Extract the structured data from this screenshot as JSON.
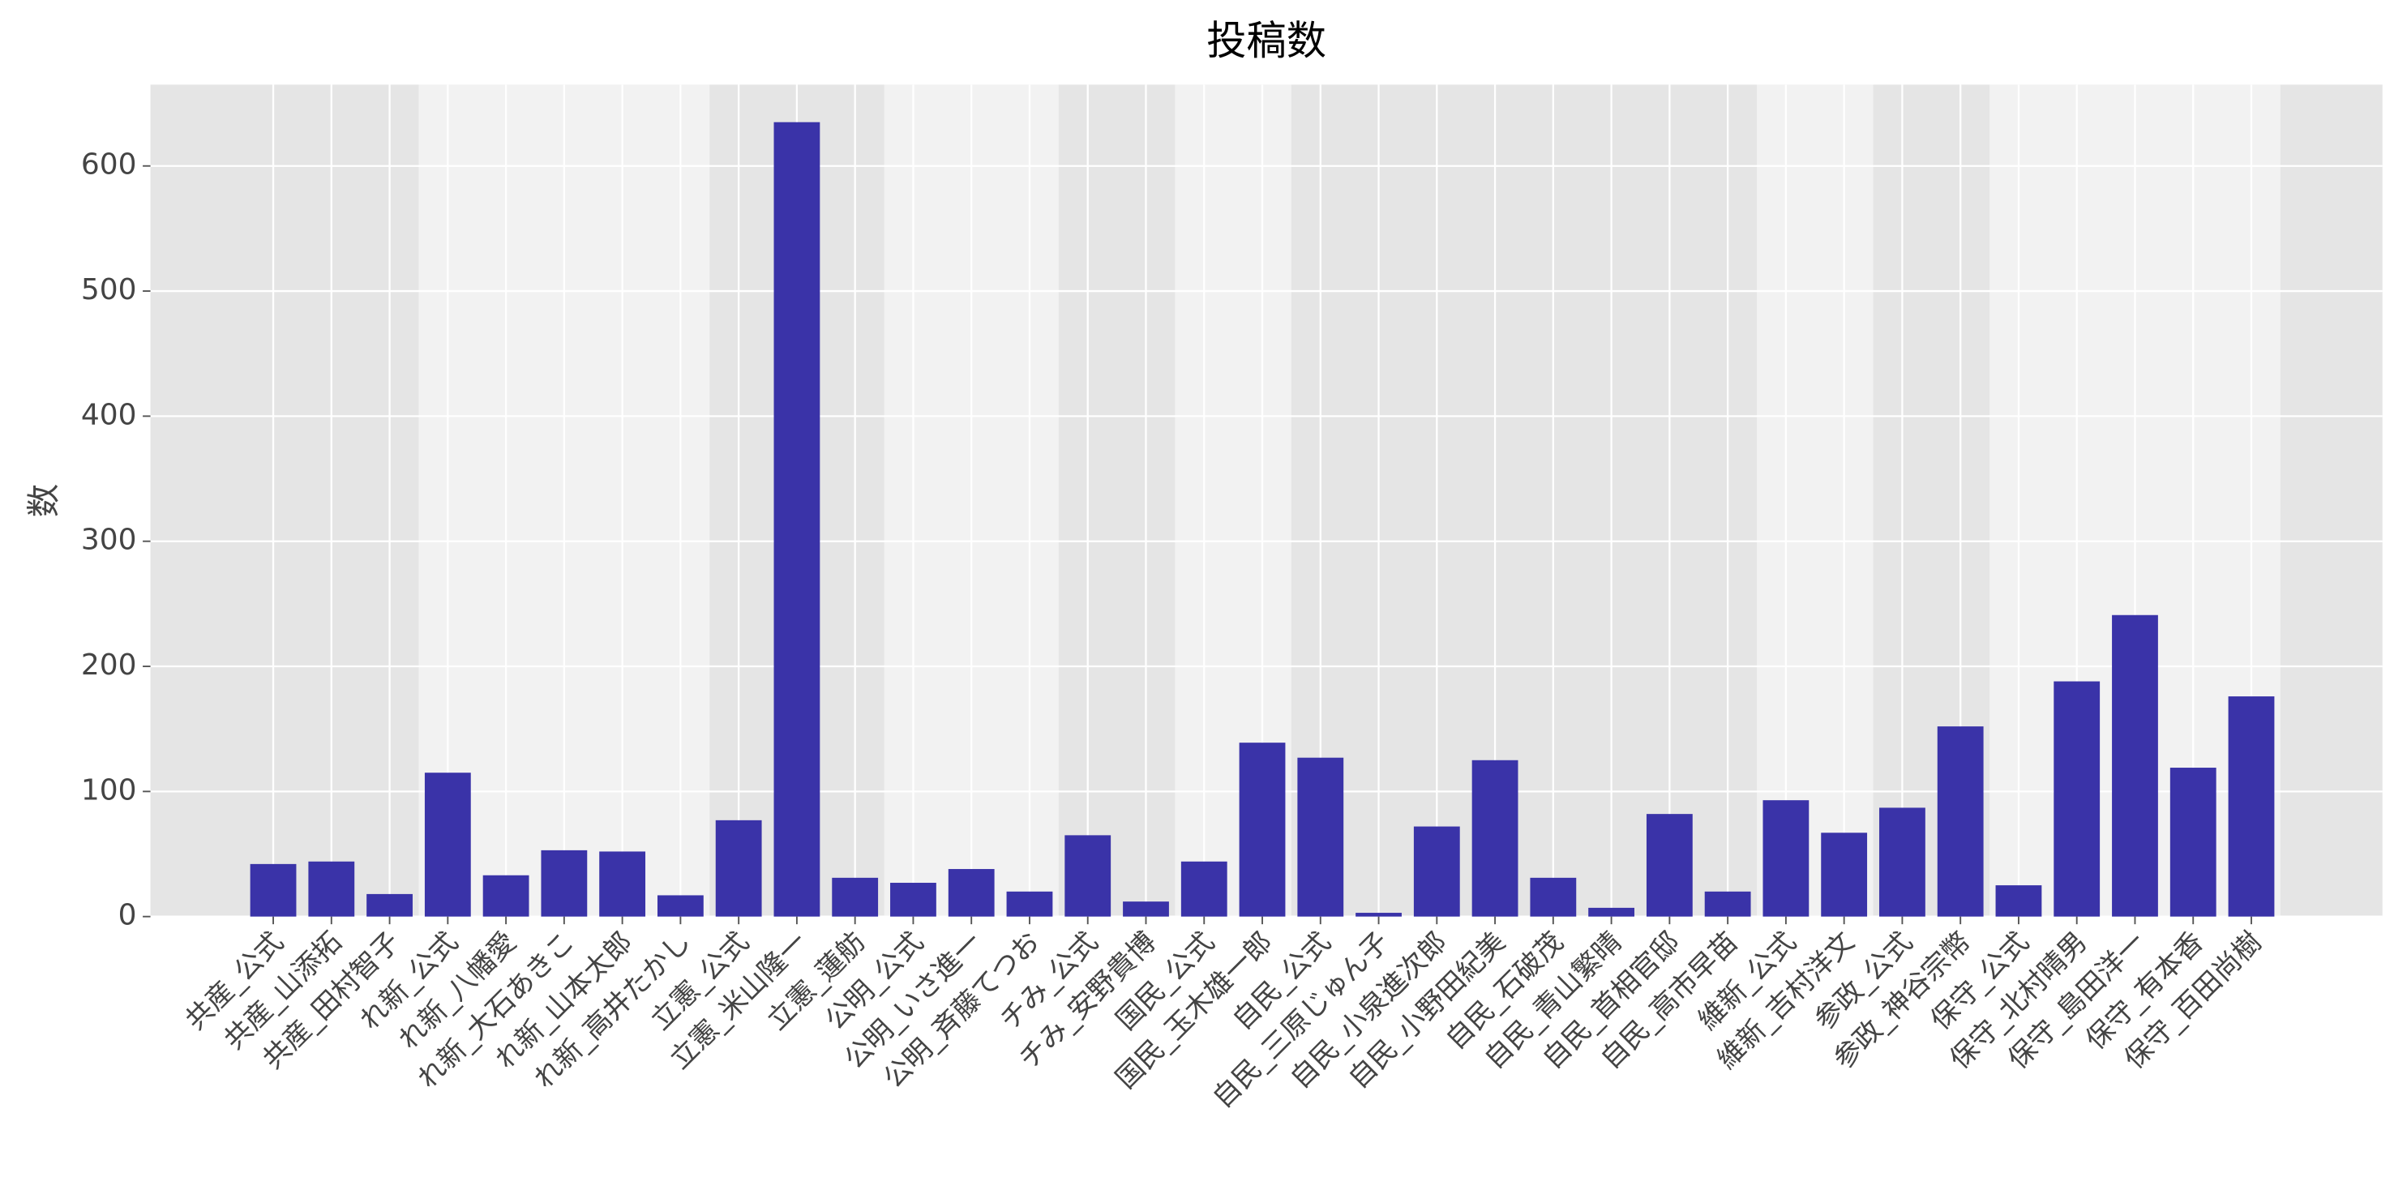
{
  "chart_data": {
    "type": "bar",
    "title": "投稿数",
    "y_label": "数",
    "categories": [
      "共産_公式",
      "共産_山添拓",
      "共産_田村智子",
      "れ新_公式",
      "れ新_八幡愛",
      "れ新_大石あきこ",
      "れ新_山本太郎",
      "れ新_高井たかし",
      "立憲_公式",
      "立憲_米山隆一",
      "立憲_蓮舫",
      "公明_公式",
      "公明_いさ進一",
      "公明_斉藤てつお",
      "チみ_公式",
      "チみ_安野貴博",
      "国民_公式",
      "国民_玉木雄一郎",
      "自民_公式",
      "自民_三原じゅん子",
      "自民_小泉進次郎",
      "自民_小野田紀美",
      "自民_石破茂",
      "自民_青山繁晴",
      "自民_首相官邸",
      "自民_高市早苗",
      "維新_公式",
      "維新_吉村洋文",
      "参政_公式",
      "参政_神谷宗幣",
      "保守_公式",
      "保守_北村晴男",
      "保守_島田洋一",
      "保守_有本香",
      "保守_百田尚樹"
    ],
    "values": [
      42,
      44,
      18,
      115,
      33,
      53,
      52,
      17,
      77,
      635,
      31,
      27,
      38,
      20,
      65,
      12,
      44,
      139,
      127,
      3,
      72,
      125,
      31,
      7,
      82,
      20,
      93,
      67,
      87,
      152,
      25,
      188,
      241,
      119,
      176
    ],
    "color": "#3a33a8",
    "ylim": [
      0,
      665
    ],
    "yticks": [
      0,
      100,
      200,
      300,
      400,
      500,
      600
    ],
    "grid": true
  }
}
